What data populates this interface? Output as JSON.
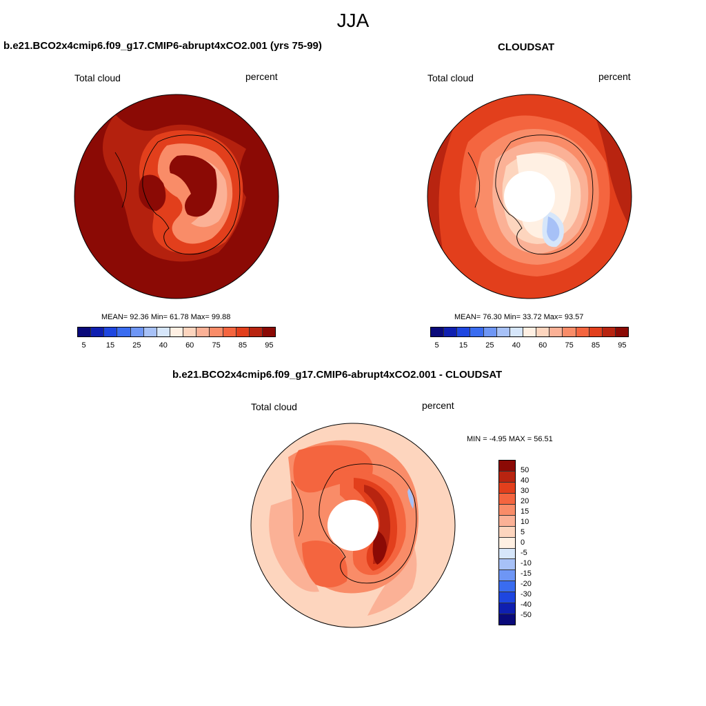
{
  "figure": {
    "season": "JJA",
    "panels": [
      {
        "id": "model",
        "title": "b.e21.BCO2x4cmip6.f09_g17.CMIP6-abrupt4xCO2.001 (yrs 75-99)",
        "left_label": "Total cloud",
        "right_label": "percent",
        "stats_text": "MEAN=  92.36  Min=  61.78  Max=  99.88",
        "mean": 92.36,
        "min": 61.78,
        "max": 99.88
      },
      {
        "id": "obs",
        "title": "CLOUDSAT",
        "left_label": "Total cloud",
        "right_label": "percent",
        "stats_text": "MEAN=  76.30  Min=  33.72  Max=  93.57",
        "mean": 76.3,
        "min": 33.72,
        "max": 93.57
      },
      {
        "id": "diff",
        "title": "b.e21.BCO2x4cmip6.f09_g17.CMIP6-abrupt4xCO2.001 - CLOUDSAT",
        "left_label": "Total cloud",
        "right_label": "percent",
        "stats_text": "MIN =  -4.95 MAX =  56.51",
        "min": -4.95,
        "max": 56.51
      }
    ],
    "colorbar_horizontal": {
      "tick_labels": [
        "5",
        "15",
        "25",
        "40",
        "60",
        "75",
        "85",
        "95"
      ],
      "colors": [
        "#0a0a7a",
        "#0f1fb0",
        "#1e46e0",
        "#3a6cf0",
        "#6e96f5",
        "#a7c1f7",
        "#d6e6fa",
        "#fff0e3",
        "#fdd5be",
        "#fbb196",
        "#f98c68",
        "#f4653f",
        "#e23f1c",
        "#b82410",
        "#8b0a05"
      ]
    },
    "colorbar_vertical": {
      "tick_labels": [
        "50",
        "40",
        "30",
        "20",
        "15",
        "10",
        "5",
        "0",
        "-5",
        "-10",
        "-15",
        "-20",
        "-30",
        "-40",
        "-50"
      ],
      "colors": [
        "#8b0a05",
        "#b82410",
        "#e23f1c",
        "#f4653f",
        "#f98c68",
        "#fbb196",
        "#fdd5be",
        "#fff0e3",
        "#d6e6fa",
        "#a7c1f7",
        "#6e96f5",
        "#3a6cf0",
        "#1e46e0",
        "#0f1fb0",
        "#0a0a7a"
      ]
    }
  }
}
